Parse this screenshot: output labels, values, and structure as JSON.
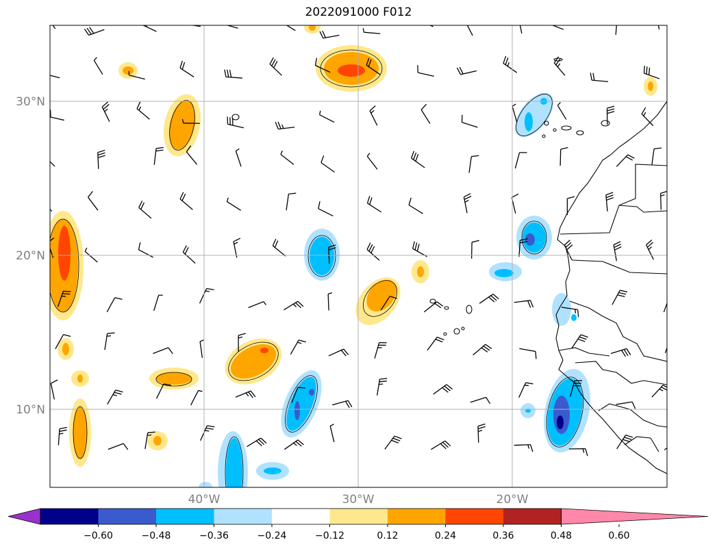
{
  "title": "2022091000 F012",
  "map": {
    "lat_labels": [
      "30°N",
      "20°N",
      "10°N"
    ],
    "lon_labels": [
      "40°W",
      "30°W",
      "20°W"
    ]
  },
  "colorbar": {
    "ticks": [
      "−0.60",
      "−0.48",
      "−0.36",
      "−0.24",
      "−0.12",
      "0.12",
      "0.24",
      "0.36",
      "0.48",
      "0.60"
    ],
    "colors": [
      "#9932CC",
      "#00008B",
      "#3A5BCD",
      "#00BFFF",
      "#B0E2FF",
      "#FFFFFF",
      "#FFE88C",
      "#FFA500",
      "#FF4500",
      "#B22222",
      "#FF88AA"
    ]
  }
}
